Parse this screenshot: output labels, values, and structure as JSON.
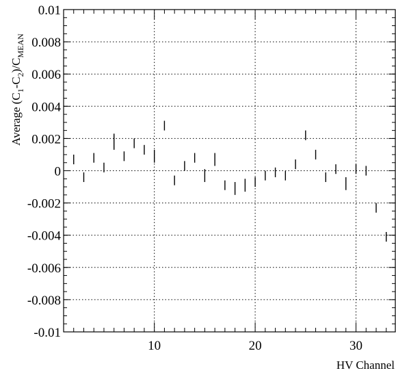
{
  "chart_data": {
    "type": "scatter",
    "title": "",
    "xlabel": "HV Channel",
    "ylabel": {
      "prefix": "Average (C",
      "sub1": "1",
      "mid": "-C",
      "sub2": "2",
      "slash": ")/C",
      "sub3": "MEAN"
    },
    "xlim": [
      1,
      33.9
    ],
    "ylim": [
      -0.01,
      0.01
    ],
    "grid": true,
    "x_ticks": [
      {
        "value": 10,
        "label": "10"
      },
      {
        "value": 20,
        "label": "20"
      },
      {
        "value": 30,
        "label": "30"
      }
    ],
    "y_ticks": [
      {
        "value": 0.01,
        "label": "0.01"
      },
      {
        "value": 0.008,
        "label": "0.008"
      },
      {
        "value": 0.006,
        "label": "0.006"
      },
      {
        "value": 0.004,
        "label": "0.004"
      },
      {
        "value": 0.002,
        "label": "0.002"
      },
      {
        "value": 0,
        "label": "0"
      },
      {
        "value": -0.002,
        "label": "-0.002"
      },
      {
        "value": -0.004,
        "label": "-0.004"
      },
      {
        "value": -0.006,
        "label": "-0.006"
      },
      {
        "value": -0.008,
        "label": "-0.008"
      },
      {
        "value": -0.01,
        "label": "-0.01"
      }
    ],
    "series": [
      {
        "points": [
          {
            "x": 2,
            "y": 0.0007,
            "err": 0.0003
          },
          {
            "x": 3,
            "y": -0.0004,
            "err": 0.0003
          },
          {
            "x": 4,
            "y": 0.0008,
            "err": 0.0003
          },
          {
            "x": 5,
            "y": 0.0002,
            "err": 0.0003
          },
          {
            "x": 6,
            "y": 0.0018,
            "err": 0.0005
          },
          {
            "x": 7,
            "y": 0.0009,
            "err": 0.0003
          },
          {
            "x": 8,
            "y": 0.0017,
            "err": 0.0003
          },
          {
            "x": 9,
            "y": 0.0013,
            "err": 0.0003
          },
          {
            "x": 10,
            "y": 0.0009,
            "err": 0.0004
          },
          {
            "x": 11,
            "y": 0.0028,
            "err": 0.0003
          },
          {
            "x": 12,
            "y": -0.0006,
            "err": 0.0003
          },
          {
            "x": 13,
            "y": 0.0003,
            "err": 0.0003
          },
          {
            "x": 14,
            "y": 0.0008,
            "err": 0.0003
          },
          {
            "x": 15,
            "y": -0.0003,
            "err": 0.0004
          },
          {
            "x": 16,
            "y": 0.0007,
            "err": 0.0004
          },
          {
            "x": 17,
            "y": -0.0009,
            "err": 0.0003
          },
          {
            "x": 18,
            "y": -0.0011,
            "err": 0.0004
          },
          {
            "x": 19,
            "y": -0.0009,
            "err": 0.0004
          },
          {
            "x": 20,
            "y": -0.0007,
            "err": 0.0003
          },
          {
            "x": 21,
            "y": -0.0003,
            "err": 0.0003
          },
          {
            "x": 22,
            "y": -0.0001,
            "err": 0.0003
          },
          {
            "x": 23,
            "y": -0.0003,
            "err": 0.0003
          },
          {
            "x": 24,
            "y": 0.0004,
            "err": 0.0003
          },
          {
            "x": 25,
            "y": 0.0022,
            "err": 0.0003
          },
          {
            "x": 26,
            "y": 0.001,
            "err": 0.0003
          },
          {
            "x": 27,
            "y": -0.0004,
            "err": 0.0003
          },
          {
            "x": 28,
            "y": 0.0001,
            "err": 0.0003
          },
          {
            "x": 29,
            "y": -0.0008,
            "err": 0.0004
          },
          {
            "x": 30,
            "y": 0.0001,
            "err": 0.0003
          },
          {
            "x": 31,
            "y": 0.0,
            "err": 0.0003
          },
          {
            "x": 32,
            "y": -0.0023,
            "err": 0.0003
          },
          {
            "x": 33,
            "y": -0.0041,
            "err": 0.0003
          }
        ]
      }
    ]
  }
}
